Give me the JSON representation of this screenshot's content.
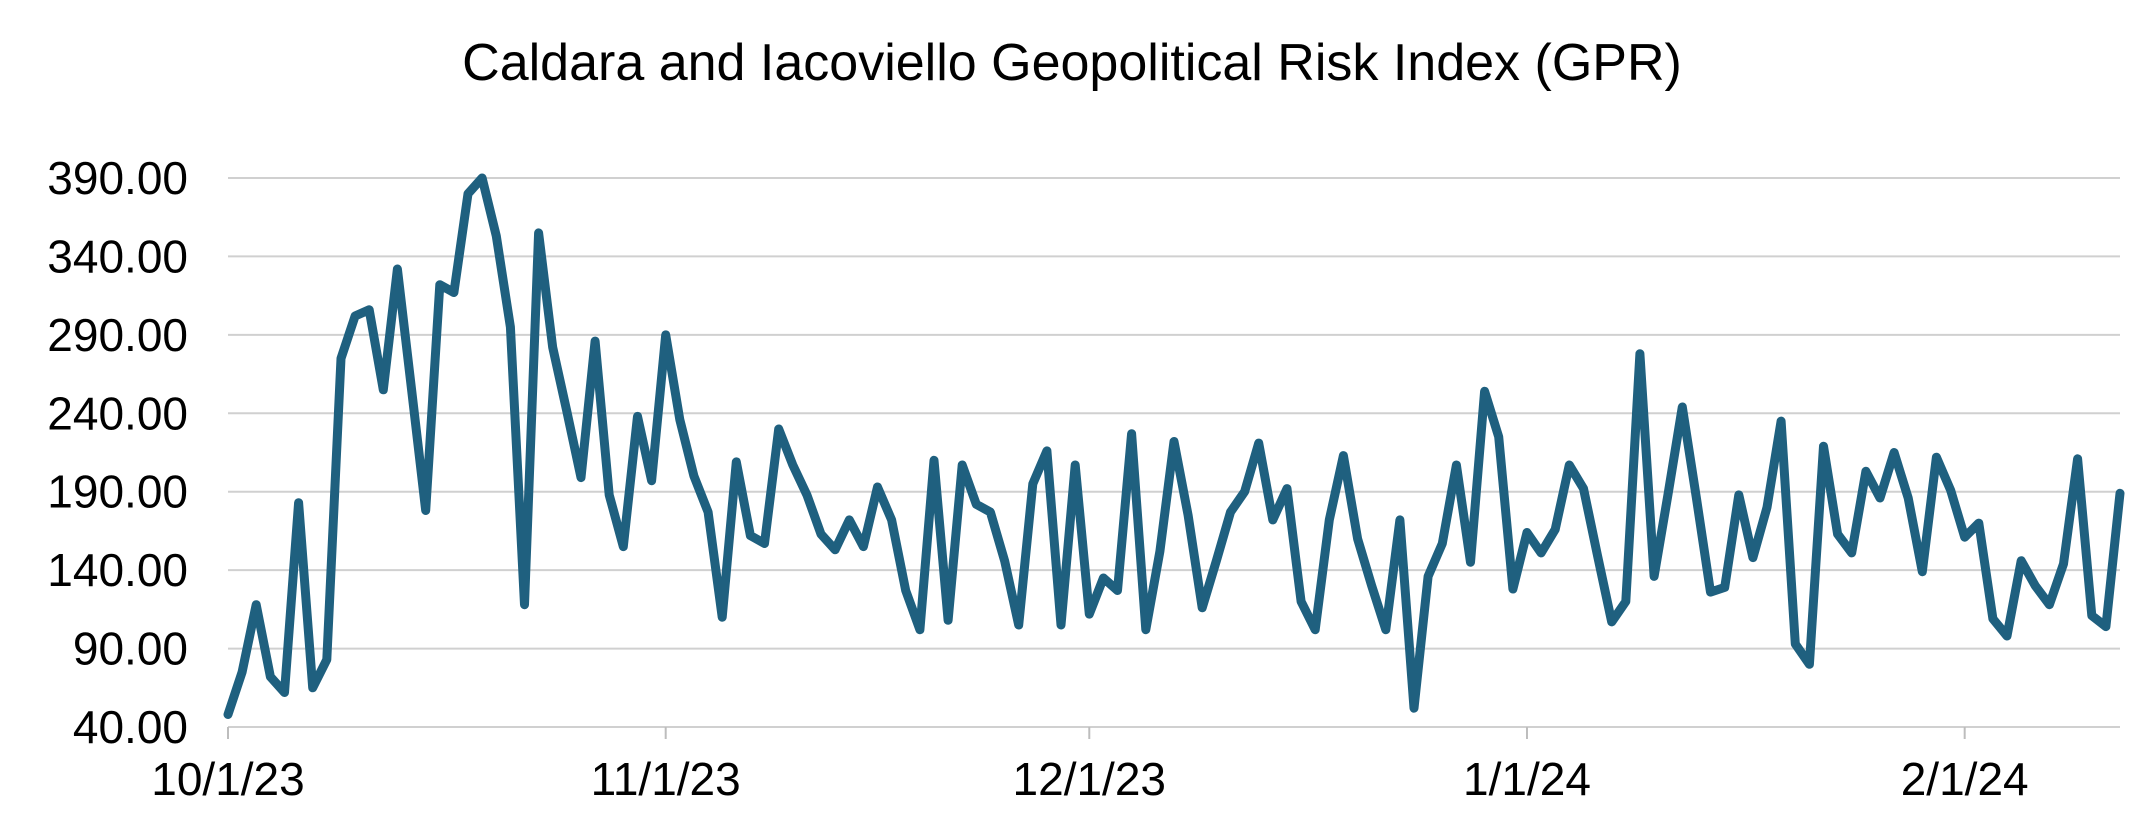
{
  "chart_data": {
    "type": "line",
    "title": "Caldara and Iacoviello Geopolitical Risk Index (GPR)",
    "xlabel": "",
    "ylabel": "",
    "x_start": "2023-10-01",
    "x_tick_labels": [
      "10/1/23",
      "11/1/23",
      "12/1/23",
      "1/1/24",
      "2/1/24"
    ],
    "x_tick_dates": [
      "2023-10-01",
      "2023-11-01",
      "2023-12-01",
      "2024-01-01",
      "2024-02-01"
    ],
    "y_tick_labels": [
      "390.00",
      "340.00",
      "290.00",
      "240.00",
      "190.00",
      "140.00",
      "90.00",
      "40.00"
    ],
    "y_ticks": [
      390,
      340,
      290,
      240,
      190,
      140,
      90,
      40
    ],
    "ylim": [
      40,
      390
    ],
    "grid": true,
    "legend": "none",
    "line_color": "#1f607f",
    "series": [
      {
        "values": [
          48,
          75,
          118,
          72,
          62,
          183,
          65,
          83,
          275,
          302,
          306,
          255,
          332,
          255,
          178,
          322,
          317,
          380,
          390,
          353,
          295,
          118,
          355,
          282,
          241,
          199,
          286,
          188,
          155,
          238,
          197,
          290,
          236,
          200,
          177,
          110,
          209,
          162,
          157,
          230,
          207,
          188,
          163,
          153,
          172,
          155,
          193,
          172,
          127,
          102,
          210,
          108,
          207,
          182,
          177,
          146,
          105,
          195,
          216,
          105,
          207,
          112,
          135,
          127,
          227,
          102,
          152,
          222,
          175,
          116,
          146,
          177,
          190,
          221,
          172,
          192,
          120,
          102,
          172,
          213,
          160,
          130,
          102,
          172,
          52,
          136,
          157,
          207,
          145,
          254,
          225,
          128,
          164,
          151,
          166,
          207,
          192,
          149,
          107,
          120,
          278,
          136,
          189,
          244,
          186,
          126,
          129,
          188,
          148,
          180,
          235,
          93,
          80,
          219,
          163,
          151,
          203,
          186,
          215,
          186,
          139,
          212,
          191,
          161,
          170,
          109,
          98,
          146,
          130,
          118,
          144,
          211,
          111,
          104,
          189
        ]
      }
    ]
  }
}
